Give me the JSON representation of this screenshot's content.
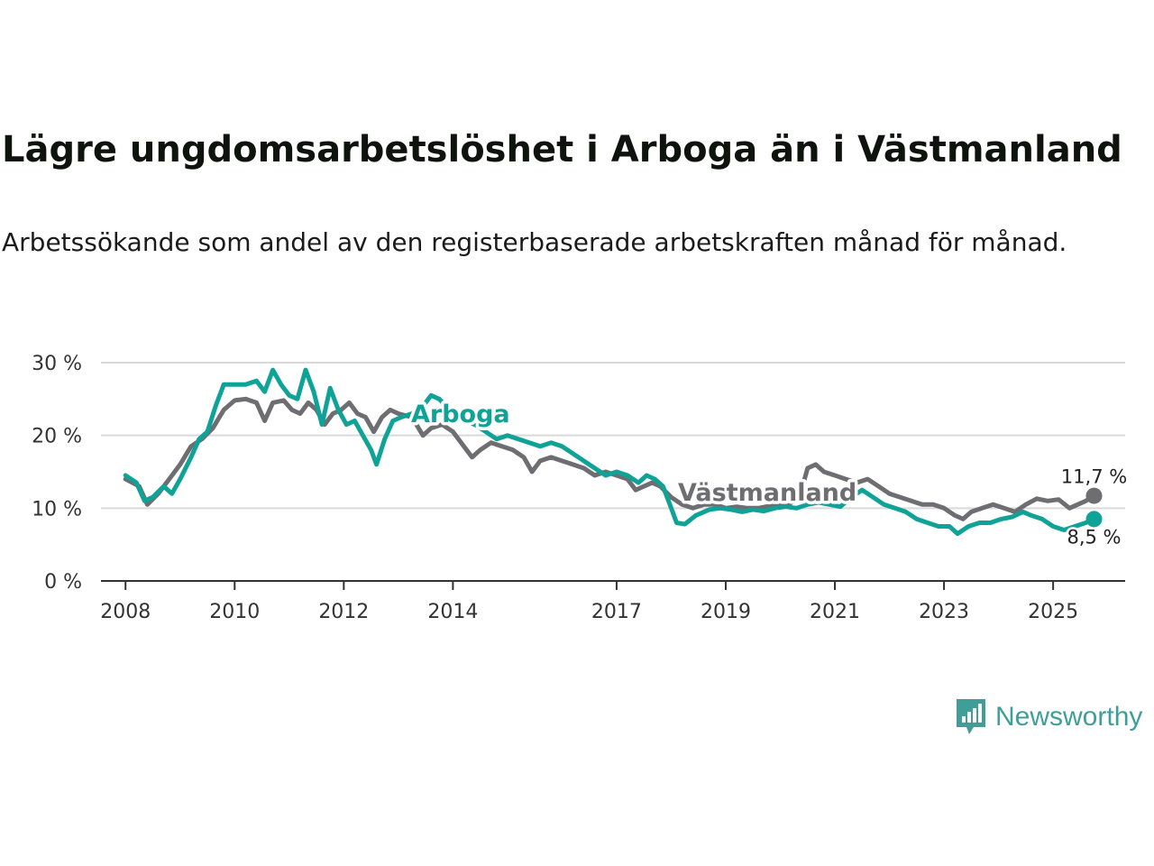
{
  "title": "Lägre ungdomsarbetslöshet i Arboga än i Västmanland",
  "subtitle": "Arbetssökande som andel av den registerbaserade arbetskraften månad för månad.",
  "brand": {
    "name": "Newsworthy",
    "icon": "newsworthy-chart-bubble-icon",
    "color": "#3f9e98"
  },
  "chart_data": {
    "type": "line",
    "title": "Lägre ungdomsarbetslöshet i Arboga än i Västmanland",
    "xlabel": "",
    "ylabel": "",
    "x_range": [
      2007.55,
      2026.32
    ],
    "ylim": [
      0,
      30
    ],
    "yticks": [
      {
        "value": 0,
        "label": "0 %"
      },
      {
        "value": 10,
        "label": "10 %"
      },
      {
        "value": 20,
        "label": "20 %"
      },
      {
        "value": 30,
        "label": "30 %"
      }
    ],
    "xticks": [
      {
        "value": 2008,
        "label": "2008"
      },
      {
        "value": 2010,
        "label": "2010"
      },
      {
        "value": 2012,
        "label": "2012"
      },
      {
        "value": 2014,
        "label": "2014"
      },
      {
        "value": 2017,
        "label": "2017"
      },
      {
        "value": 2019,
        "label": "2019"
      },
      {
        "value": 2021,
        "label": "2021"
      },
      {
        "value": 2023,
        "label": "2023"
      },
      {
        "value": 2025,
        "label": "2025"
      }
    ],
    "grid": true,
    "series": [
      {
        "name": "Västmanland",
        "color": "#6e6d72",
        "end_label": "11,7 %",
        "points": [
          [
            2008.0,
            14.0
          ],
          [
            2008.25,
            13.0
          ],
          [
            2008.4,
            10.5
          ],
          [
            2008.6,
            12.0
          ],
          [
            2008.8,
            14.0
          ],
          [
            2009.0,
            16.0
          ],
          [
            2009.2,
            18.5
          ],
          [
            2009.4,
            19.5
          ],
          [
            2009.6,
            21.0
          ],
          [
            2009.8,
            23.5
          ],
          [
            2010.0,
            24.8
          ],
          [
            2010.2,
            25.0
          ],
          [
            2010.4,
            24.5
          ],
          [
            2010.55,
            22.0
          ],
          [
            2010.7,
            24.5
          ],
          [
            2010.9,
            24.8
          ],
          [
            2011.05,
            23.5
          ],
          [
            2011.2,
            23.0
          ],
          [
            2011.35,
            24.5
          ],
          [
            2011.5,
            23.5
          ],
          [
            2011.65,
            21.5
          ],
          [
            2011.8,
            23.0
          ],
          [
            2011.95,
            23.5
          ],
          [
            2012.1,
            24.5
          ],
          [
            2012.25,
            23.0
          ],
          [
            2012.4,
            22.5
          ],
          [
            2012.55,
            20.5
          ],
          [
            2012.7,
            22.5
          ],
          [
            2012.85,
            23.5
          ],
          [
            2013.0,
            23.0
          ],
          [
            2013.25,
            22.5
          ],
          [
            2013.45,
            20.0
          ],
          [
            2013.6,
            21.0
          ],
          [
            2013.8,
            21.5
          ],
          [
            2014.0,
            20.5
          ],
          [
            2014.2,
            18.5
          ],
          [
            2014.35,
            17.0
          ],
          [
            2014.5,
            18.0
          ],
          [
            2014.7,
            19.0
          ],
          [
            2014.9,
            18.5
          ],
          [
            2015.1,
            18.0
          ],
          [
            2015.3,
            17.0
          ],
          [
            2015.45,
            15.0
          ],
          [
            2015.6,
            16.5
          ],
          [
            2015.8,
            17.0
          ],
          [
            2016.0,
            16.5
          ],
          [
            2016.2,
            16.0
          ],
          [
            2016.4,
            15.5
          ],
          [
            2016.6,
            14.5
          ],
          [
            2016.8,
            15.0
          ],
          [
            2017.0,
            14.5
          ],
          [
            2017.2,
            14.0
          ],
          [
            2017.35,
            12.5
          ],
          [
            2017.5,
            13.0
          ],
          [
            2017.65,
            13.5
          ],
          [
            2017.8,
            13.0
          ],
          [
            2018.0,
            11.5
          ],
          [
            2018.2,
            10.5
          ],
          [
            2018.4,
            10.0
          ],
          [
            2018.6,
            10.5
          ],
          [
            2018.8,
            10.5
          ],
          [
            2019.0,
            10.0
          ],
          [
            2019.2,
            10.2
          ],
          [
            2019.4,
            10.0
          ],
          [
            2019.6,
            10.0
          ],
          [
            2019.8,
            10.3
          ],
          [
            2020.0,
            10.5
          ],
          [
            2020.15,
            10.5
          ],
          [
            2020.35,
            11.5
          ],
          [
            2020.5,
            15.5
          ],
          [
            2020.65,
            16.0
          ],
          [
            2020.8,
            15.0
          ],
          [
            2021.0,
            14.5
          ],
          [
            2021.2,
            14.0
          ],
          [
            2021.4,
            13.5
          ],
          [
            2021.6,
            14.0
          ],
          [
            2021.8,
            13.0
          ],
          [
            2022.0,
            12.0
          ],
          [
            2022.2,
            11.5
          ],
          [
            2022.4,
            11.0
          ],
          [
            2022.6,
            10.5
          ],
          [
            2022.8,
            10.5
          ],
          [
            2023.0,
            10.0
          ],
          [
            2023.2,
            9.0
          ],
          [
            2023.35,
            8.5
          ],
          [
            2023.5,
            9.5
          ],
          [
            2023.7,
            10.0
          ],
          [
            2023.9,
            10.5
          ],
          [
            2024.1,
            10.0
          ],
          [
            2024.3,
            9.5
          ],
          [
            2024.5,
            10.5
          ],
          [
            2024.7,
            11.3
          ],
          [
            2024.9,
            11.0
          ],
          [
            2025.1,
            11.2
          ],
          [
            2025.3,
            10.0
          ],
          [
            2025.45,
            10.5
          ],
          [
            2025.6,
            11.0
          ],
          [
            2025.75,
            11.7
          ]
        ]
      },
      {
        "name": "Arboga",
        "color": "#0fa398",
        "end_label": "8,5 %",
        "points": [
          [
            2008.0,
            14.5
          ],
          [
            2008.2,
            13.5
          ],
          [
            2008.35,
            11.0
          ],
          [
            2008.5,
            11.5
          ],
          [
            2008.7,
            13.0
          ],
          [
            2008.85,
            12.0
          ],
          [
            2009.0,
            14.0
          ],
          [
            2009.2,
            17.0
          ],
          [
            2009.35,
            19.5
          ],
          [
            2009.5,
            20.5
          ],
          [
            2009.65,
            24.0
          ],
          [
            2009.8,
            27.0
          ],
          [
            2010.0,
            27.0
          ],
          [
            2010.2,
            27.0
          ],
          [
            2010.4,
            27.5
          ],
          [
            2010.55,
            26.0
          ],
          [
            2010.7,
            29.0
          ],
          [
            2010.85,
            27.0
          ],
          [
            2011.0,
            25.5
          ],
          [
            2011.15,
            25.0
          ],
          [
            2011.3,
            29.0
          ],
          [
            2011.45,
            26.0
          ],
          [
            2011.6,
            21.5
          ],
          [
            2011.75,
            26.5
          ],
          [
            2011.9,
            23.5
          ],
          [
            2012.05,
            21.5
          ],
          [
            2012.2,
            22.0
          ],
          [
            2012.35,
            20.0
          ],
          [
            2012.5,
            18.0
          ],
          [
            2012.6,
            16.0
          ],
          [
            2012.75,
            19.5
          ],
          [
            2012.9,
            22.0
          ],
          [
            2013.05,
            22.5
          ],
          [
            2013.25,
            23.0
          ],
          [
            2013.45,
            24.0
          ],
          [
            2013.6,
            25.5
          ],
          [
            2013.75,
            25.0
          ],
          [
            2014.0,
            23.0
          ],
          [
            2014.2,
            22.0
          ],
          [
            2014.4,
            21.5
          ],
          [
            2014.6,
            20.5
          ],
          [
            2014.8,
            19.5
          ],
          [
            2015.0,
            20.0
          ],
          [
            2015.2,
            19.5
          ],
          [
            2015.4,
            19.0
          ],
          [
            2015.6,
            18.5
          ],
          [
            2015.8,
            19.0
          ],
          [
            2016.0,
            18.5
          ],
          [
            2016.2,
            17.5
          ],
          [
            2016.4,
            16.5
          ],
          [
            2016.6,
            15.5
          ],
          [
            2016.8,
            14.5
          ],
          [
            2017.0,
            15.0
          ],
          [
            2017.2,
            14.5
          ],
          [
            2017.4,
            13.5
          ],
          [
            2017.55,
            14.5
          ],
          [
            2017.7,
            14.0
          ],
          [
            2017.85,
            13.0
          ],
          [
            2018.0,
            10.0
          ],
          [
            2018.1,
            8.0
          ],
          [
            2018.25,
            7.8
          ],
          [
            2018.45,
            9.0
          ],
          [
            2018.7,
            9.8
          ],
          [
            2018.9,
            10.0
          ],
          [
            2019.1,
            9.8
          ],
          [
            2019.3,
            9.5
          ],
          [
            2019.5,
            9.8
          ],
          [
            2019.7,
            9.6
          ],
          [
            2019.9,
            10.0
          ],
          [
            2020.1,
            10.2
          ],
          [
            2020.3,
            10.0
          ],
          [
            2020.5,
            10.5
          ],
          [
            2020.7,
            10.8
          ],
          [
            2020.9,
            10.5
          ],
          [
            2021.1,
            10.2
          ],
          [
            2021.3,
            11.5
          ],
          [
            2021.5,
            12.5
          ],
          [
            2021.7,
            11.5
          ],
          [
            2021.9,
            10.5
          ],
          [
            2022.1,
            10.0
          ],
          [
            2022.3,
            9.5
          ],
          [
            2022.5,
            8.5
          ],
          [
            2022.7,
            8.0
          ],
          [
            2022.9,
            7.5
          ],
          [
            2023.1,
            7.5
          ],
          [
            2023.25,
            6.5
          ],
          [
            2023.45,
            7.5
          ],
          [
            2023.65,
            8.0
          ],
          [
            2023.85,
            8.0
          ],
          [
            2024.05,
            8.5
          ],
          [
            2024.25,
            8.8
          ],
          [
            2024.45,
            9.5
          ],
          [
            2024.6,
            9.0
          ],
          [
            2024.8,
            8.5
          ],
          [
            2025.0,
            7.5
          ],
          [
            2025.2,
            7.0
          ],
          [
            2025.4,
            7.5
          ],
          [
            2025.6,
            8.0
          ],
          [
            2025.75,
            8.5
          ]
        ]
      }
    ]
  }
}
